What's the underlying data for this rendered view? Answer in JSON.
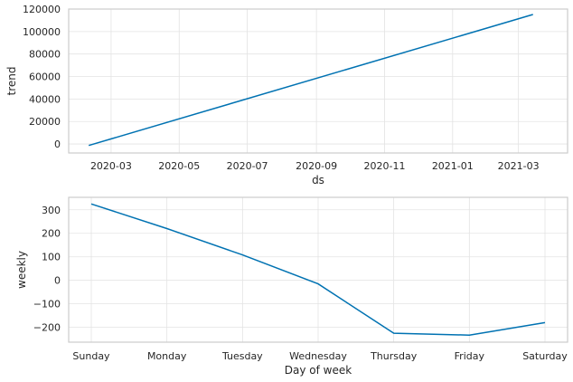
{
  "chart_data": [
    {
      "type": "line",
      "xlabel": "ds",
      "ylabel": "trend",
      "x_ticks": [
        "2020-03",
        "2020-05",
        "2020-07",
        "2020-09",
        "2020-11",
        "2021-01",
        "2021-03"
      ],
      "y_ticks": [
        "0",
        "20000",
        "40000",
        "60000",
        "80000",
        "100000",
        "120000"
      ],
      "ylim": [
        -8000,
        120000
      ],
      "xlim": [
        "2020-01-23",
        "2021-04-14"
      ],
      "grid": true,
      "series": [
        {
          "x": [
            "2020-02-10",
            "2021-03-14"
          ],
          "y": [
            -1300,
            115200
          ],
          "color": "#0072B2"
        }
      ]
    },
    {
      "type": "line",
      "xlabel": "Day of week",
      "ylabel": "weekly",
      "categories": [
        "Sunday",
        "Monday",
        "Tuesday",
        "Wednesday",
        "Thursday",
        "Friday",
        "Saturday"
      ],
      "y_ticks": [
        "300",
        "200",
        "100",
        "0",
        "−100",
        "−200"
      ],
      "ylim": [
        -263,
        353
      ],
      "grid": true,
      "series": [
        {
          "values": [
            325,
            220,
            108,
            -15,
            -225,
            -233,
            -180
          ],
          "color": "#0072B2"
        }
      ]
    }
  ]
}
